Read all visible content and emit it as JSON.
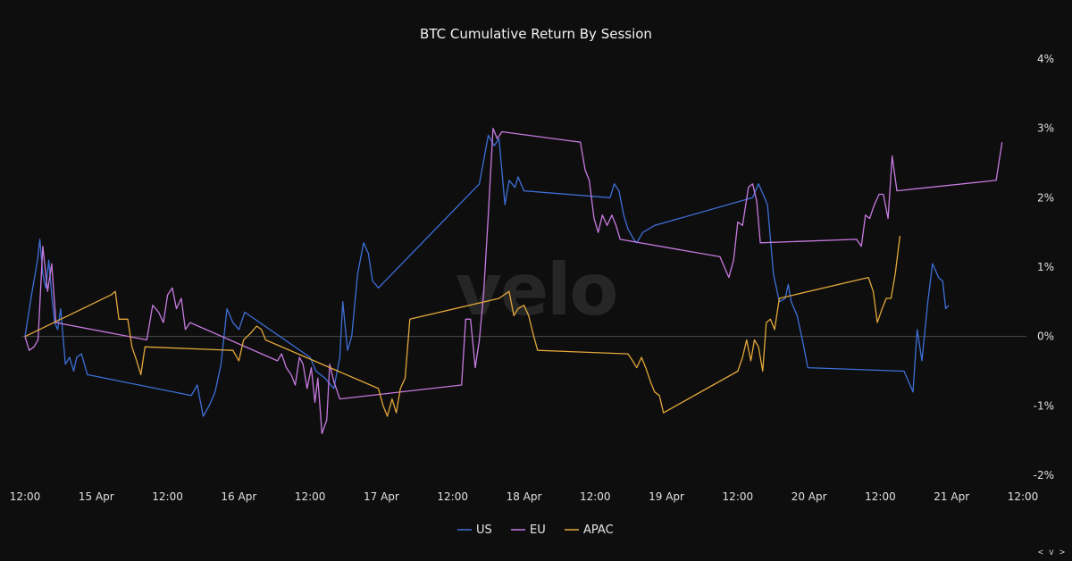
{
  "watermark": "velo",
  "corner_label": "< v >",
  "chart_data": {
    "type": "line",
    "title": "BTC Cumulative Return By Session",
    "xlabel": "",
    "ylabel": "",
    "x_unit": "hours since 14 Apr 12:00",
    "x_ticks": [
      {
        "x": 0,
        "label": "12:00"
      },
      {
        "x": 12,
        "label": "15 Apr"
      },
      {
        "x": 24,
        "label": "12:00"
      },
      {
        "x": 36,
        "label": "16 Apr"
      },
      {
        "x": 48,
        "label": "12:00"
      },
      {
        "x": 60,
        "label": "17 Apr"
      },
      {
        "x": 72,
        "label": "12:00"
      },
      {
        "x": 84,
        "label": "18 Apr"
      },
      {
        "x": 96,
        "label": "12:00"
      },
      {
        "x": 108,
        "label": "19 Apr"
      },
      {
        "x": 120,
        "label": "12:00"
      },
      {
        "x": 132,
        "label": "20 Apr"
      },
      {
        "x": 144,
        "label": "12:00"
      },
      {
        "x": 156,
        "label": "21 Apr"
      },
      {
        "x": 168,
        "label": "12:00"
      }
    ],
    "y_ticks": [
      {
        "y": 4,
        "label": "4%"
      },
      {
        "y": 3,
        "label": "3%"
      },
      {
        "y": 2,
        "label": "2%"
      },
      {
        "y": 1,
        "label": "1%"
      },
      {
        "y": 0,
        "label": "0%"
      },
      {
        "y": -1,
        "label": "-1%"
      },
      {
        "y": -2,
        "label": "-2%"
      }
    ],
    "xlim": [
      0,
      168
    ],
    "ylim": [
      -2,
      4
    ],
    "y_axis_side": "right",
    "zero_line": true,
    "grid": false,
    "legend_position": "bottom-center",
    "series": [
      {
        "name": "US",
        "color": "#3d6fd6",
        "points": [
          [
            0,
            0
          ],
          [
            1.1,
            0.6
          ],
          [
            2.1,
            1.1
          ],
          [
            2.5,
            1.4
          ],
          [
            3.0,
            0.9
          ],
          [
            3.5,
            0.7
          ],
          [
            4.0,
            1.1
          ],
          [
            4.5,
            0.6
          ],
          [
            5.0,
            0.2
          ],
          [
            5.5,
            0.1
          ],
          [
            6.0,
            0.4
          ],
          [
            6.8,
            -0.4
          ],
          [
            7.5,
            -0.3
          ],
          [
            8.2,
            -0.5
          ],
          [
            8.7,
            -0.3
          ],
          [
            9.5,
            -0.25
          ],
          [
            10.5,
            -0.55
          ],
          [
            28.0,
            -0.85
          ],
          [
            29.0,
            -0.7
          ],
          [
            30.0,
            -1.15
          ],
          [
            31.0,
            -1.0
          ],
          [
            32.0,
            -0.8
          ],
          [
            33.0,
            -0.4
          ],
          [
            34.0,
            0.4
          ],
          [
            35.0,
            0.2
          ],
          [
            36.0,
            0.1
          ],
          [
            37.0,
            0.35
          ],
          [
            48.0,
            -0.3
          ],
          [
            49.0,
            -0.5
          ],
          [
            50.5,
            -0.6
          ],
          [
            52.0,
            -0.75
          ],
          [
            53.0,
            -0.3
          ],
          [
            53.5,
            0.5
          ],
          [
            54.3,
            -0.2
          ],
          [
            55.0,
            0.0
          ],
          [
            56.0,
            0.9
          ],
          [
            57.0,
            1.35
          ],
          [
            57.8,
            1.2
          ],
          [
            58.5,
            0.8
          ],
          [
            59.5,
            0.7
          ],
          [
            76.5,
            2.2
          ],
          [
            78.0,
            2.9
          ],
          [
            79.0,
            2.75
          ],
          [
            79.8,
            2.85
          ],
          [
            80.8,
            1.9
          ],
          [
            81.5,
            2.25
          ],
          [
            82.5,
            2.15
          ],
          [
            83.0,
            2.3
          ],
          [
            84.0,
            2.1
          ],
          [
            98.5,
            2.0
          ],
          [
            99.2,
            2.2
          ],
          [
            100.0,
            2.1
          ],
          [
            100.8,
            1.75
          ],
          [
            101.5,
            1.55
          ],
          [
            102.5,
            1.4
          ],
          [
            103.0,
            1.35
          ],
          [
            104.0,
            1.5
          ],
          [
            105.0,
            1.55
          ],
          [
            106.0,
            1.6
          ],
          [
            122.5,
            2.0
          ],
          [
            123.5,
            2.2
          ],
          [
            124.5,
            2.0
          ],
          [
            125.0,
            1.9
          ],
          [
            126.0,
            0.9
          ],
          [
            127.0,
            0.5
          ],
          [
            128.0,
            0.55
          ],
          [
            128.5,
            0.75
          ],
          [
            129.0,
            0.5
          ],
          [
            130.0,
            0.3
          ],
          [
            131.0,
            -0.1
          ],
          [
            131.8,
            -0.45
          ],
          [
            148.0,
            -0.5
          ],
          [
            149.5,
            -0.8
          ],
          [
            150.2,
            0.1
          ],
          [
            151.0,
            -0.35
          ],
          [
            152.0,
            0.5
          ],
          [
            152.8,
            1.05
          ],
          [
            153.8,
            0.85
          ],
          [
            154.5,
            0.8
          ],
          [
            155.0,
            0.4
          ],
          [
            155.5,
            0.45
          ]
        ]
      },
      {
        "name": "EU",
        "color": "#c77be0",
        "points": [
          [
            0,
            0
          ],
          [
            0.7,
            -0.2
          ],
          [
            1.5,
            -0.15
          ],
          [
            2.2,
            -0.05
          ],
          [
            3.0,
            1.3
          ],
          [
            3.8,
            0.65
          ],
          [
            4.5,
            1.05
          ],
          [
            5.2,
            0.2
          ],
          [
            20.5,
            -0.05
          ],
          [
            21.5,
            0.45
          ],
          [
            22.5,
            0.35
          ],
          [
            23.3,
            0.2
          ],
          [
            24.0,
            0.6
          ],
          [
            24.8,
            0.7
          ],
          [
            25.5,
            0.4
          ],
          [
            26.3,
            0.55
          ],
          [
            27.0,
            0.1
          ],
          [
            27.8,
            0.2
          ],
          [
            42.5,
            -0.35
          ],
          [
            43.2,
            -0.25
          ],
          [
            44.0,
            -0.45
          ],
          [
            44.8,
            -0.55
          ],
          [
            45.5,
            -0.7
          ],
          [
            46.2,
            -0.3
          ],
          [
            46.8,
            -0.4
          ],
          [
            47.5,
            -0.75
          ],
          [
            48.2,
            -0.45
          ],
          [
            48.8,
            -0.95
          ],
          [
            49.3,
            -0.6
          ],
          [
            50.0,
            -1.4
          ],
          [
            50.8,
            -1.2
          ],
          [
            51.3,
            -0.4
          ],
          [
            52.0,
            -0.65
          ],
          [
            53.0,
            -0.9
          ],
          [
            73.5,
            -0.7
          ],
          [
            74.2,
            0.25
          ],
          [
            75.0,
            0.25
          ],
          [
            75.8,
            -0.45
          ],
          [
            76.5,
            -0.05
          ],
          [
            77.2,
            0.6
          ],
          [
            78.0,
            1.75
          ],
          [
            78.8,
            3.0
          ],
          [
            79.5,
            2.85
          ],
          [
            80.3,
            2.95
          ],
          [
            93.5,
            2.8
          ],
          [
            94.3,
            2.4
          ],
          [
            95.0,
            2.25
          ],
          [
            95.8,
            1.7
          ],
          [
            96.5,
            1.5
          ],
          [
            97.2,
            1.75
          ],
          [
            98.0,
            1.6
          ],
          [
            98.8,
            1.75
          ],
          [
            99.5,
            1.6
          ],
          [
            100.2,
            1.4
          ],
          [
            117.0,
            1.15
          ],
          [
            118.5,
            0.85
          ],
          [
            119.3,
            1.1
          ],
          [
            120.0,
            1.65
          ],
          [
            120.8,
            1.6
          ],
          [
            121.8,
            2.15
          ],
          [
            122.5,
            2.2
          ],
          [
            123.2,
            1.95
          ],
          [
            123.8,
            1.35
          ],
          [
            140.0,
            1.4
          ],
          [
            140.8,
            1.3
          ],
          [
            141.5,
            1.75
          ],
          [
            142.2,
            1.7
          ],
          [
            143.0,
            1.9
          ],
          [
            143.8,
            2.05
          ],
          [
            144.5,
            2.05
          ],
          [
            145.3,
            1.7
          ],
          [
            146.0,
            2.6
          ],
          [
            146.8,
            2.1
          ],
          [
            163.5,
            2.25
          ],
          [
            164.5,
            2.8
          ]
        ]
      },
      {
        "name": "APAC",
        "color": "#e3a83a",
        "points": [
          [
            0,
            0
          ],
          [
            14.5,
            0.6
          ],
          [
            15.2,
            0.65
          ],
          [
            15.8,
            0.25
          ],
          [
            16.5,
            0.25
          ],
          [
            17.3,
            0.25
          ],
          [
            18.0,
            -0.15
          ],
          [
            18.8,
            -0.35
          ],
          [
            19.5,
            -0.55
          ],
          [
            20.2,
            -0.15
          ],
          [
            35.0,
            -0.2
          ],
          [
            36.0,
            -0.35
          ],
          [
            36.8,
            -0.05
          ],
          [
            38.0,
            0.05
          ],
          [
            39.0,
            0.15
          ],
          [
            39.8,
            0.1
          ],
          [
            40.5,
            -0.05
          ],
          [
            59.5,
            -0.75
          ],
          [
            60.3,
            -1.0
          ],
          [
            61.0,
            -1.15
          ],
          [
            61.8,
            -0.9
          ],
          [
            62.5,
            -1.1
          ],
          [
            63.2,
            -0.75
          ],
          [
            64.0,
            -0.6
          ],
          [
            64.8,
            0.25
          ],
          [
            79.8,
            0.55
          ],
          [
            81.5,
            0.65
          ],
          [
            82.3,
            0.3
          ],
          [
            83.0,
            0.4
          ],
          [
            84.0,
            0.45
          ],
          [
            84.8,
            0.3
          ],
          [
            85.5,
            0.05
          ],
          [
            86.3,
            -0.2
          ],
          [
            101.5,
            -0.25
          ],
          [
            102.3,
            -0.35
          ],
          [
            103.0,
            -0.45
          ],
          [
            103.8,
            -0.3
          ],
          [
            104.5,
            -0.45
          ],
          [
            105.3,
            -0.65
          ],
          [
            106.0,
            -0.8
          ],
          [
            106.8,
            -0.85
          ],
          [
            107.5,
            -1.1
          ],
          [
            120.0,
            -0.5
          ],
          [
            120.8,
            -0.3
          ],
          [
            121.5,
            -0.05
          ],
          [
            122.2,
            -0.35
          ],
          [
            122.8,
            -0.05
          ],
          [
            123.5,
            -0.15
          ],
          [
            124.2,
            -0.5
          ],
          [
            124.8,
            0.2
          ],
          [
            125.5,
            0.25
          ],
          [
            126.2,
            0.1
          ],
          [
            127.0,
            0.55
          ],
          [
            142.0,
            0.85
          ],
          [
            142.8,
            0.65
          ],
          [
            143.5,
            0.2
          ],
          [
            144.3,
            0.4
          ],
          [
            145.0,
            0.55
          ],
          [
            145.8,
            0.55
          ],
          [
            146.5,
            0.9
          ],
          [
            147.3,
            1.45
          ]
        ]
      }
    ]
  }
}
